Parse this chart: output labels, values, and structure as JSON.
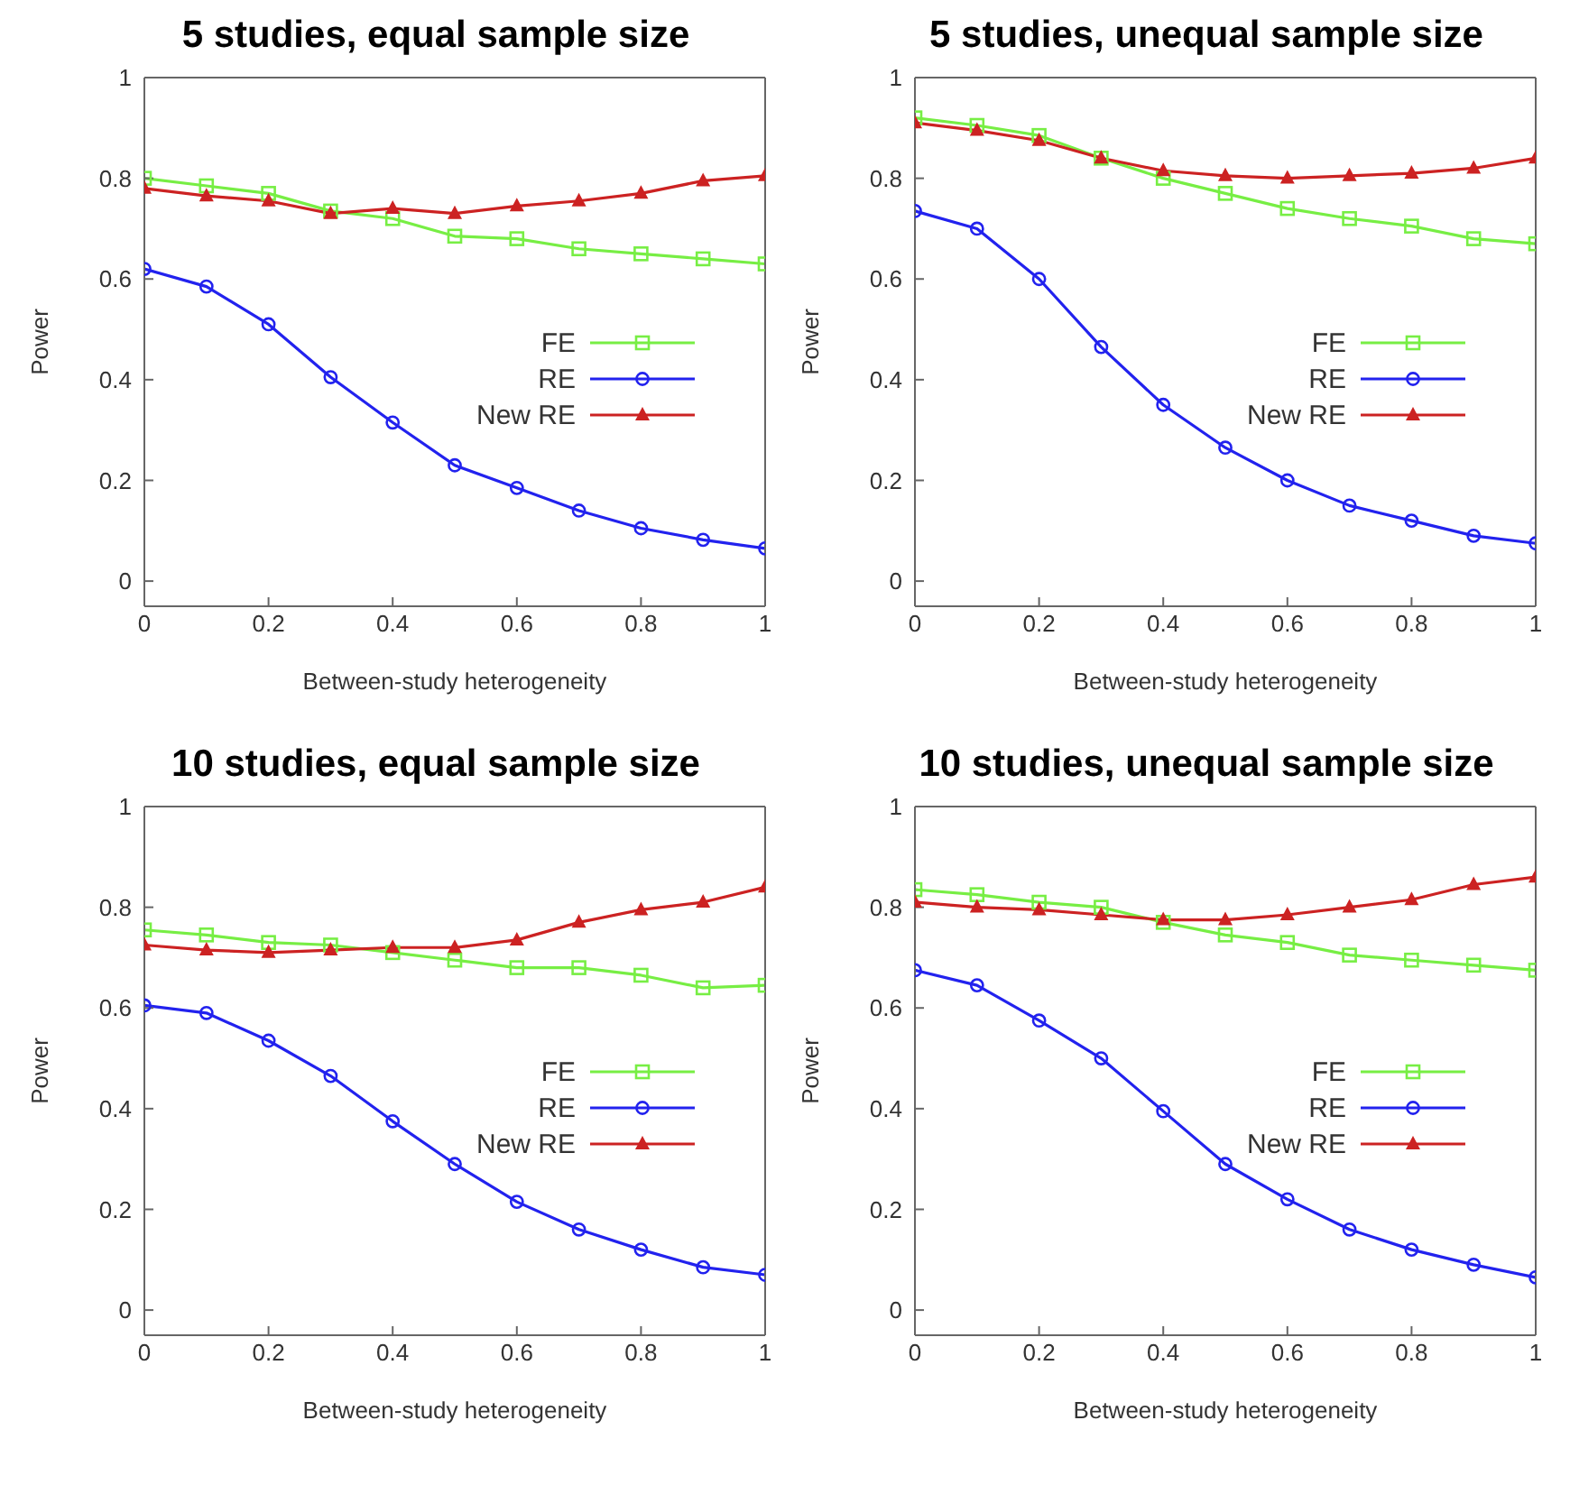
{
  "chart_data": [
    {
      "type": "line",
      "title": "5 studies, equal sample size",
      "xlabel": "Between-study heterogeneity",
      "ylabel": "Power",
      "x": [
        0,
        0.1,
        0.2,
        0.3,
        0.4,
        0.5,
        0.6,
        0.7,
        0.8,
        0.9,
        1
      ],
      "xlim": [
        0,
        1
      ],
      "xticks": [
        0,
        0.2,
        0.4,
        0.6,
        0.8,
        1
      ],
      "ylim": [
        -0.05,
        1
      ],
      "yticks": [
        0,
        0.2,
        0.4,
        0.6,
        0.8,
        1
      ],
      "legend": "right",
      "series": [
        {
          "name": "FE",
          "color": "#77ee44",
          "marker": "square",
          "values": [
            0.8,
            0.785,
            0.77,
            0.735,
            0.72,
            0.685,
            0.68,
            0.66,
            0.65,
            0.64,
            0.63
          ]
        },
        {
          "name": "RE",
          "color": "#2222ee",
          "marker": "circle",
          "values": [
            0.62,
            0.585,
            0.51,
            0.405,
            0.315,
            0.23,
            0.185,
            0.14,
            0.105,
            0.082,
            0.065
          ]
        },
        {
          "name": "New RE",
          "color": "#cc2222",
          "marker": "triangle",
          "values": [
            0.78,
            0.765,
            0.755,
            0.73,
            0.74,
            0.73,
            0.745,
            0.755,
            0.77,
            0.795,
            0.805
          ]
        }
      ]
    },
    {
      "type": "line",
      "title": "5 studies, unequal sample size",
      "xlabel": "Between-study heterogeneity",
      "ylabel": "Power",
      "x": [
        0,
        0.1,
        0.2,
        0.3,
        0.4,
        0.5,
        0.6,
        0.7,
        0.8,
        0.9,
        1
      ],
      "xlim": [
        0,
        1
      ],
      "xticks": [
        0,
        0.2,
        0.4,
        0.6,
        0.8,
        1
      ],
      "ylim": [
        -0.05,
        1
      ],
      "yticks": [
        0,
        0.2,
        0.4,
        0.6,
        0.8,
        1
      ],
      "legend": "right",
      "series": [
        {
          "name": "FE",
          "color": "#77ee44",
          "marker": "square",
          "values": [
            0.92,
            0.905,
            0.885,
            0.84,
            0.8,
            0.77,
            0.74,
            0.72,
            0.705,
            0.68,
            0.67
          ]
        },
        {
          "name": "RE",
          "color": "#2222ee",
          "marker": "circle",
          "values": [
            0.735,
            0.7,
            0.6,
            0.465,
            0.35,
            0.265,
            0.2,
            0.15,
            0.12,
            0.09,
            0.075
          ]
        },
        {
          "name": "New RE",
          "color": "#cc2222",
          "marker": "triangle",
          "values": [
            0.91,
            0.895,
            0.875,
            0.84,
            0.815,
            0.805,
            0.8,
            0.805,
            0.81,
            0.82,
            0.84
          ]
        }
      ]
    },
    {
      "type": "line",
      "title": "10 studies, equal sample size",
      "xlabel": "Between-study heterogeneity",
      "ylabel": "Power",
      "x": [
        0,
        0.1,
        0.2,
        0.3,
        0.4,
        0.5,
        0.6,
        0.7,
        0.8,
        0.9,
        1
      ],
      "xlim": [
        0,
        1
      ],
      "xticks": [
        0,
        0.2,
        0.4,
        0.6,
        0.8,
        1
      ],
      "ylim": [
        -0.05,
        1
      ],
      "yticks": [
        0,
        0.2,
        0.4,
        0.6,
        0.8,
        1
      ],
      "legend": "right",
      "series": [
        {
          "name": "FE",
          "color": "#77ee44",
          "marker": "square",
          "values": [
            0.755,
            0.745,
            0.73,
            0.725,
            0.71,
            0.695,
            0.68,
            0.68,
            0.665,
            0.64,
            0.645
          ]
        },
        {
          "name": "RE",
          "color": "#2222ee",
          "marker": "circle",
          "values": [
            0.605,
            0.59,
            0.535,
            0.465,
            0.375,
            0.29,
            0.215,
            0.16,
            0.12,
            0.085,
            0.07
          ]
        },
        {
          "name": "New RE",
          "color": "#cc2222",
          "marker": "triangle",
          "values": [
            0.725,
            0.715,
            0.71,
            0.715,
            0.72,
            0.72,
            0.735,
            0.77,
            0.795,
            0.81,
            0.84
          ]
        }
      ]
    },
    {
      "type": "line",
      "title": "10 studies, unequal sample size",
      "xlabel": "Between-study heterogeneity",
      "ylabel": "Power",
      "x": [
        0,
        0.1,
        0.2,
        0.3,
        0.4,
        0.5,
        0.6,
        0.7,
        0.8,
        0.9,
        1
      ],
      "xlim": [
        0,
        1
      ],
      "xticks": [
        0,
        0.2,
        0.4,
        0.6,
        0.8,
        1
      ],
      "ylim": [
        -0.05,
        1
      ],
      "yticks": [
        0,
        0.2,
        0.4,
        0.6,
        0.8,
        1
      ],
      "legend": "right",
      "series": [
        {
          "name": "FE",
          "color": "#77ee44",
          "marker": "square",
          "values": [
            0.835,
            0.825,
            0.81,
            0.8,
            0.77,
            0.745,
            0.73,
            0.705,
            0.695,
            0.685,
            0.675
          ]
        },
        {
          "name": "RE",
          "color": "#2222ee",
          "marker": "circle",
          "values": [
            0.675,
            0.645,
            0.575,
            0.5,
            0.395,
            0.29,
            0.22,
            0.16,
            0.12,
            0.09,
            0.065
          ]
        },
        {
          "name": "New RE",
          "color": "#cc2222",
          "marker": "triangle",
          "values": [
            0.81,
            0.8,
            0.795,
            0.785,
            0.775,
            0.775,
            0.785,
            0.8,
            0.815,
            0.845,
            0.86
          ]
        }
      ]
    }
  ]
}
